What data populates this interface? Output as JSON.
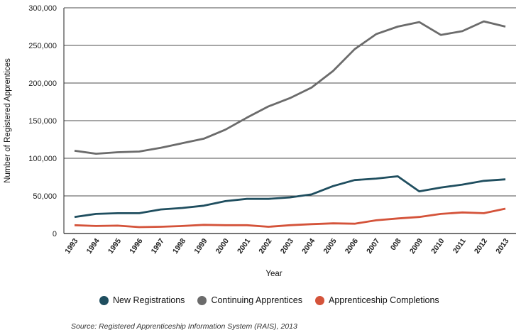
{
  "chart_data": {
    "type": "line",
    "xlabel": "Year",
    "ylabel": "Number of Registered Apprentices",
    "ylim": [
      0,
      300000
    ],
    "yticks": [
      0,
      50000,
      100000,
      150000,
      200000,
      250000,
      300000
    ],
    "ytick_labels": [
      "0",
      "50,000",
      "100,000",
      "150,000",
      "200,000",
      "250,000",
      "300,000"
    ],
    "categories": [
      "1993",
      "1994",
      "1995",
      "1996",
      "1997",
      "1998",
      "1999",
      "2000",
      "2001",
      "2002",
      "2003",
      "2004",
      "2005",
      "2006",
      "2007",
      "008",
      "2009",
      "2010",
      "2011",
      "2012",
      "2013"
    ],
    "grid": true,
    "legend_position": "bottom",
    "series": [
      {
        "name": "New Registrations",
        "color": "#1f4e5f",
        "values": [
          22000,
          26000,
          27000,
          27000,
          32000,
          34000,
          37000,
          43000,
          46000,
          46000,
          48000,
          52000,
          63000,
          71000,
          73000,
          76000,
          56000,
          61000,
          65000,
          70000,
          72000
        ]
      },
      {
        "name": "Continuing Apprentices",
        "color": "#6b6b6b",
        "values": [
          110000,
          106000,
          108000,
          109000,
          114000,
          120000,
          126000,
          138000,
          154000,
          169000,
          180000,
          194000,
          216000,
          245000,
          265000,
          275000,
          281000,
          264000,
          269000,
          282000,
          275000
        ]
      },
      {
        "name": "Apprenticeship Completions",
        "color": "#d4533a",
        "values": [
          11000,
          10000,
          10500,
          8500,
          9000,
          10000,
          11500,
          11000,
          11000,
          9000,
          11000,
          12500,
          13500,
          13000,
          17500,
          20000,
          22000,
          26000,
          28000,
          27000,
          33000
        ]
      }
    ]
  },
  "source": "Source: Registered Apprenticeship Information System (RAIS), 2013"
}
